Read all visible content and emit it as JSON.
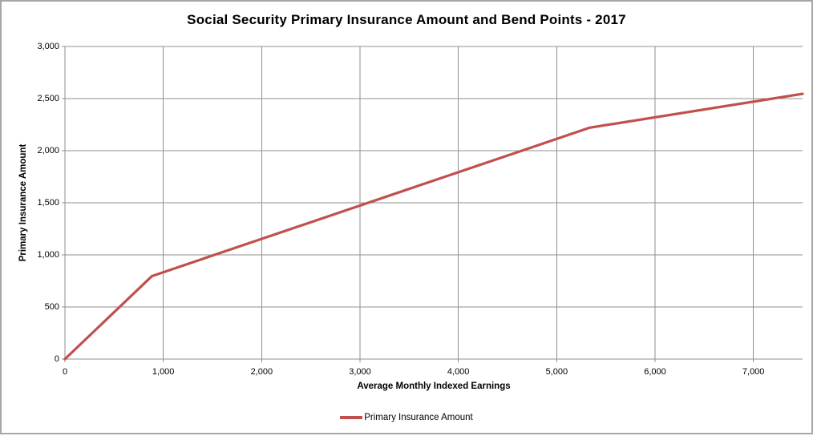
{
  "colors": {
    "line": "#C0504D",
    "gridline": "#8F8F8F",
    "axis": "#8F8F8F",
    "chart_border": "#A6A6A6",
    "background": "#FFFFFF",
    "text": "#000000"
  },
  "chart_data": {
    "type": "line",
    "title": "Social Security Primary Insurance Amount and Bend Points - 2017",
    "xlabel": "Average Monthly Indexed Earnings",
    "ylabel": "Primary Insurance Amount",
    "xlim": [
      0,
      7500
    ],
    "ylim": [
      0,
      3000
    ],
    "x_ticks": [
      0,
      1000,
      2000,
      3000,
      4000,
      5000,
      6000,
      7000
    ],
    "x_tick_labels": [
      "0",
      "1,000",
      "2,000",
      "3,000",
      "4,000",
      "5,000",
      "6,000",
      "7,000"
    ],
    "y_ticks": [
      0,
      500,
      1000,
      1500,
      2000,
      2500,
      3000
    ],
    "y_tick_labels": [
      "0",
      "500",
      "1,000",
      "1,500",
      "2,000",
      "2,500",
      "3,000"
    ],
    "grid": true,
    "legend_position": "bottom",
    "series": [
      {
        "name": "Primary Insurance Amount",
        "color": "#C0504D",
        "x": [
          0,
          885,
          5336,
          7500
        ],
        "y": [
          0,
          796.5,
          2220.82,
          2545.42
        ]
      }
    ]
  },
  "legend": {
    "label": "Primary Insurance Amount"
  }
}
